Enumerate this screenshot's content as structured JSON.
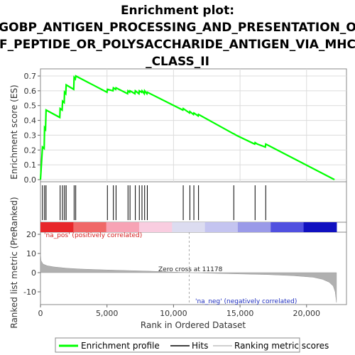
{
  "title_lines": [
    "Enrichment plot:",
    "GOBP_ANTIGEN_PROCESSING_AND_PRESENTATION_O",
    "F_PEPTIDE_OR_POLYSACCHARIDE_ANTIGEN_VIA_MHC",
    "_CLASS_II"
  ],
  "chart_data": [
    {
      "type": "line",
      "title": "Enrichment plot: GOBP_ANTIGEN_PROCESSING_AND_PRESENTATION_OF_PEPTIDE_OR_POLYSACCHARIDE_ANTIGEN_VIA_MHC_CLASS_II",
      "ylabel": "Enrichment score (ES)",
      "xlim": [
        0,
        23000
      ],
      "ylim": [
        -0.02,
        0.72
      ],
      "yticks": [
        "0.0",
        "0.1",
        "0.2",
        "0.3",
        "0.4",
        "0.5",
        "0.6",
        "0.7"
      ],
      "grid": true,
      "series": [
        {
          "name": "Enrichment profile",
          "color": "#00ff00",
          "x": [
            0,
            120,
            150,
            280,
            310,
            380,
            420,
            1450,
            1480,
            1630,
            1660,
            1780,
            1810,
            1900,
            1930,
            2500,
            2530,
            2620,
            2650,
            5000,
            5030,
            5450,
            5480,
            5650,
            5680,
            6550,
            6580,
            6700,
            6730,
            7100,
            7130,
            7400,
            7430,
            7600,
            7630,
            7800,
            7830,
            8000,
            8030,
            10700,
            10730,
            11200,
            11230,
            11500,
            11530,
            11850,
            11880,
            14500,
            14530,
            14700,
            16100,
            16130,
            16300,
            16900,
            16930,
            22100
          ],
          "y": [
            0.0,
            0.17,
            0.22,
            0.21,
            0.35,
            0.34,
            0.47,
            0.42,
            0.48,
            0.47,
            0.53,
            0.52,
            0.59,
            0.58,
            0.64,
            0.61,
            0.69,
            0.68,
            0.7,
            0.59,
            0.61,
            0.6,
            0.62,
            0.61,
            0.62,
            0.58,
            0.6,
            0.59,
            0.6,
            0.58,
            0.6,
            0.58,
            0.6,
            0.59,
            0.6,
            0.58,
            0.6,
            0.58,
            0.59,
            0.47,
            0.48,
            0.45,
            0.46,
            0.44,
            0.45,
            0.43,
            0.44,
            0.31,
            0.31,
            0.3,
            0.24,
            0.25,
            0.24,
            0.22,
            0.24,
            0.0
          ]
        }
      ]
    },
    {
      "type": "scatter",
      "title": "Hits",
      "hits": [
        150,
        310,
        420,
        1480,
        1660,
        1810,
        1930,
        2530,
        2650,
        5030,
        5480,
        5680,
        6580,
        6730,
        7130,
        7430,
        7630,
        7830,
        8030,
        10730,
        11230,
        11530,
        11880,
        14530,
        16130,
        16930
      ]
    },
    {
      "type": "area",
      "title": "Ranking metric scores",
      "ylabel": "Ranked list metric (PreRanked)",
      "xlabel": "Rank in Ordered Dataset",
      "xlim": [
        0,
        23000
      ],
      "ylim": [
        -17,
        22
      ],
      "yticks": [
        "-10",
        "0",
        "10",
        "20"
      ],
      "xticks": [
        "0",
        "5,000",
        "10,000",
        "15,000",
        "20,000"
      ],
      "x": [
        0,
        50,
        200,
        500,
        1000,
        2000,
        3000,
        5000,
        8000,
        11178,
        14000,
        17000,
        19000,
        20500,
        21200,
        21700,
        22000,
        22150,
        22250
      ],
      "y": [
        10,
        6.2,
        4.5,
        3.6,
        3.0,
        2.3,
        1.9,
        1.4,
        0.8,
        0.0,
        -0.5,
        -1.0,
        -1.6,
        -2.4,
        -3.5,
        -5,
        -7,
        -10,
        -15.5
      ],
      "zero_cross": 11178,
      "colorbar": [
        "#e8262a",
        "#f06868",
        "#f7a3b5",
        "#f9cde0",
        "#dcdcf0",
        "#c4c4f0",
        "#9a9ae8",
        "#5050e0",
        "#1010c0"
      ],
      "annotations": {
        "zero_cross_label": "Zero cross at 11178",
        "pos_label": "'na_pos' (positively correlated)",
        "neg_label": "'na_neg' (negatively correlated)"
      }
    }
  ],
  "legend": {
    "items": [
      {
        "label": "Enrichment profile",
        "color": "#00ff00"
      },
      {
        "label": "Hits",
        "color": "#000000"
      },
      {
        "label": "Ranking metric scores",
        "color": "#c0c0c0"
      }
    ]
  }
}
